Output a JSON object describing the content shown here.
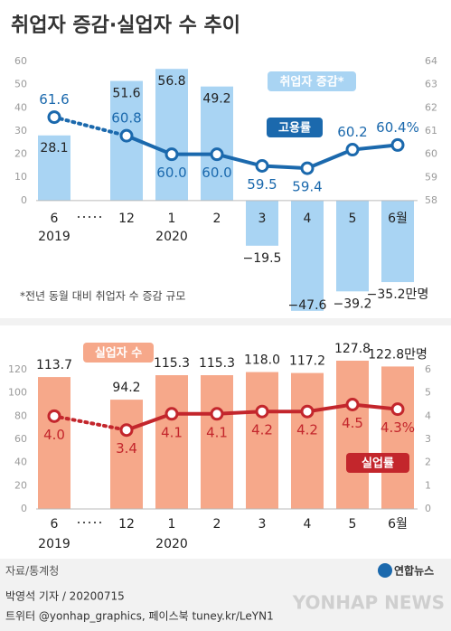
{
  "title": "취업자 증감·실업자 수 추이",
  "chart_data": [
    {
      "type": "bar_line",
      "categories": [
        "6",
        "12",
        "1",
        "2",
        "3",
        "4",
        "5",
        "6월"
      ],
      "years": [
        "2019",
        null,
        "2020",
        null,
        null,
        null,
        null,
        null
      ],
      "ylim": [
        -50,
        60
      ],
      "yticks": [
        0,
        10,
        20,
        30,
        40,
        50,
        60
      ],
      "y2lim": [
        58,
        64
      ],
      "y2ticks": [
        58,
        59,
        60,
        61,
        62,
        63,
        64
      ],
      "series": [
        {
          "name": "취업자 증감*",
          "type": "bar",
          "color": "#a9d4f3",
          "values": [
            28.1,
            51.6,
            56.8,
            49.2,
            -19.5,
            -47.6,
            -39.2,
            -35.2
          ],
          "value_labels": [
            "28.1",
            "51.6",
            "56.8",
            "49.2",
            "−19.5",
            "−47.6",
            "−39.2",
            "−35.2만명"
          ]
        },
        {
          "name": "고용률",
          "type": "line",
          "axis": "y2",
          "color": "#1b69ad",
          "values": [
            61.6,
            60.8,
            60.0,
            60.0,
            59.5,
            59.4,
            60.2,
            60.4
          ],
          "value_labels": [
            "61.6",
            "60.8",
            "60.0",
            "60.0",
            "59.5",
            "59.4",
            "60.2",
            "60.4%"
          ]
        }
      ],
      "note": "*전년 동월 대비 취업자 수 증감 규모"
    },
    {
      "type": "bar_line",
      "categories": [
        "6",
        "12",
        "1",
        "2",
        "3",
        "4",
        "5",
        "6월"
      ],
      "years": [
        "2019",
        null,
        "2020",
        null,
        null,
        null,
        null,
        null
      ],
      "ylim": [
        0,
        120
      ],
      "yticks": [
        0,
        20,
        40,
        60,
        80,
        100,
        120
      ],
      "y2lim": [
        0,
        6
      ],
      "y2ticks": [
        0,
        1,
        2,
        3,
        4,
        5,
        6
      ],
      "series": [
        {
          "name": "실업자 수",
          "type": "bar",
          "color": "#f6a88a",
          "values": [
            113.7,
            94.2,
            115.3,
            115.3,
            118.0,
            117.2,
            127.8,
            122.8
          ],
          "value_labels": [
            "113.7",
            "94.2",
            "115.3",
            "115.3",
            "118.0",
            "117.2",
            "127.8",
            "122.8만명"
          ]
        },
        {
          "name": "실업률",
          "type": "line",
          "axis": "y2",
          "color": "#c3262c",
          "values": [
            4.0,
            3.4,
            4.1,
            4.1,
            4.2,
            4.2,
            4.5,
            4.3
          ],
          "value_labels": [
            "4.0",
            "3.4",
            "4.1",
            "4.1",
            "4.2",
            "4.2",
            "4.5",
            "4.3%"
          ]
        }
      ]
    }
  ],
  "source": "자료/통계청",
  "logo": "연합뉴스",
  "byline": "박영석 기자 / 20200715",
  "social": "트위터 @yonhap_graphics, 페이스북 tuney.kr/LeYN1",
  "watermark": "YONHAP NEWS"
}
